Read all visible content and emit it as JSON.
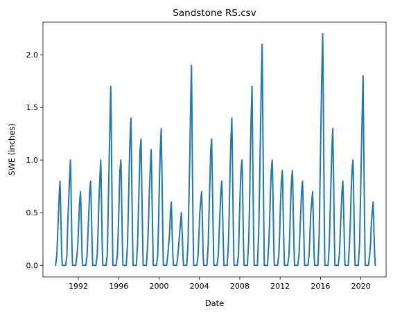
{
  "chart_data": {
    "type": "line",
    "title": "Sandstone RS.csv",
    "xlabel": "Date",
    "ylabel": "SWE (inches)",
    "xlim": [
      "1988-07-01",
      "2022-07-01"
    ],
    "ylim": [
      -0.11,
      2.31
    ],
    "grid": false,
    "x_ticks": [
      "1992",
      "1996",
      "2000",
      "2004",
      "2008",
      "2012",
      "2016",
      "2020"
    ],
    "y_ticks": [
      "0.0",
      "0.5",
      "1.0",
      "1.5",
      "2.0"
    ],
    "line_color": "#1f77b4",
    "series": [
      {
        "seasons": [
          {
            "year": 1990,
            "x": [
              "1989-10-01",
              "1989-11-15",
              "1989-12-15",
              "1990-01-15",
              "1990-02-15",
              "1990-03-10",
              "1990-03-20",
              "1990-04-15",
              "1990-05-10",
              "1990-06-01"
            ],
            "y": [
              0,
              0.1,
              0.3,
              0.5,
              0.7,
              0.8,
              0.7,
              0.4,
              0.1,
              0
            ]
          },
          {
            "year": 1991,
            "x": [
              "1990-10-01",
              "1990-11-15",
              "1990-12-15",
              "1991-01-15",
              "1991-02-15",
              "1991-03-20",
              "1991-04-01",
              "1991-04-20",
              "1991-05-15",
              "1991-06-05"
            ],
            "y": [
              0,
              0.1,
              0.4,
              0.6,
              0.8,
              1.0,
              0.9,
              0.6,
              0.2,
              0
            ]
          },
          {
            "year": 1992,
            "x": [
              "1991-10-01",
              "1991-11-15",
              "1991-12-15",
              "1992-01-15",
              "1992-02-15",
              "1992-03-20",
              "1992-04-01",
              "1992-04-20",
              "1992-05-15",
              "1992-06-05"
            ],
            "y": [
              0,
              0.1,
              0.2,
              0.4,
              0.6,
              0.7,
              0.6,
              0.4,
              0.1,
              0
            ]
          },
          {
            "year": 1993,
            "x": [
              "1992-10-01",
              "1992-11-15",
              "1992-12-15",
              "1993-01-15",
              "1993-02-15",
              "1993-03-20",
              "1993-04-01",
              "1993-04-20",
              "1993-05-15",
              "1993-06-05"
            ],
            "y": [
              0,
              0.1,
              0.3,
              0.5,
              0.7,
              0.8,
              0.7,
              0.5,
              0.2,
              0
            ]
          },
          {
            "year": 1994,
            "x": [
              "1993-10-01",
              "1993-11-15",
              "1993-12-15",
              "1994-01-15",
              "1994-02-15",
              "1994-03-20",
              "1994-04-01",
              "1994-04-20",
              "1994-05-15",
              "1994-06-05"
            ],
            "y": [
              0,
              0.1,
              0.3,
              0.6,
              0.8,
              1.0,
              0.9,
              0.6,
              0.2,
              0
            ]
          },
          {
            "year": 1995,
            "x": [
              "1994-10-01",
              "1994-11-15",
              "1994-12-15",
              "1995-01-15",
              "1995-02-15",
              "1995-03-20",
              "1995-04-01",
              "1995-04-20",
              "1995-05-15",
              "1995-06-05"
            ],
            "y": [
              0,
              0.1,
              0.5,
              0.9,
              1.3,
              1.7,
              1.5,
              1.0,
              0.4,
              0
            ]
          },
          {
            "year": 1996,
            "x": [
              "1995-10-01",
              "1995-11-15",
              "1995-12-15",
              "1996-01-15",
              "1996-02-15",
              "1996-03-20",
              "1996-04-01",
              "1996-04-20",
              "1996-05-15",
              "1996-06-05"
            ],
            "y": [
              0,
              0.1,
              0.3,
              0.6,
              0.9,
              1.0,
              0.9,
              0.6,
              0.2,
              0
            ]
          },
          {
            "year": 1997,
            "x": [
              "1996-10-01",
              "1996-11-15",
              "1996-12-15",
              "1997-01-15",
              "1997-02-15",
              "1997-03-20",
              "1997-04-01",
              "1997-04-20",
              "1997-05-15",
              "1997-06-05"
            ],
            "y": [
              0,
              0.2,
              0.5,
              0.9,
              1.2,
              1.4,
              1.2,
              0.8,
              0.3,
              0
            ]
          },
          {
            "year": 1998,
            "x": [
              "1997-10-01",
              "1997-11-15",
              "1997-12-15",
              "1998-01-15",
              "1998-02-15",
              "1998-03-20",
              "1998-04-01",
              "1998-04-20",
              "1998-05-15",
              "1998-06-05"
            ],
            "y": [
              0,
              0.2,
              0.5,
              0.8,
              1.1,
              1.2,
              1.0,
              0.7,
              0.3,
              0
            ]
          },
          {
            "year": 1999,
            "x": [
              "1998-10-01",
              "1998-11-15",
              "1998-12-15",
              "1999-01-15",
              "1999-02-15",
              "1999-03-20",
              "1999-04-01",
              "1999-04-20",
              "1999-05-15",
              "1999-06-05"
            ],
            "y": [
              0,
              0.2,
              0.4,
              0.7,
              0.9,
              1.1,
              1.0,
              0.7,
              0.3,
              0
            ]
          },
          {
            "year": 2000,
            "x": [
              "1999-10-01",
              "1999-11-15",
              "1999-12-15",
              "2000-01-15",
              "2000-02-15",
              "2000-03-20",
              "2000-04-01",
              "2000-04-20",
              "2000-05-15",
              "2000-06-05"
            ],
            "y": [
              0,
              0.1,
              0.4,
              0.8,
              1.1,
              1.3,
              1.1,
              0.8,
              0.3,
              0
            ]
          },
          {
            "year": 2001,
            "x": [
              "2000-10-01",
              "2000-11-15",
              "2000-12-15",
              "2001-01-15",
              "2001-02-15",
              "2001-03-20",
              "2001-04-01",
              "2001-04-20",
              "2001-05-15",
              "2001-06-05"
            ],
            "y": [
              0,
              0.1,
              0.2,
              0.3,
              0.5,
              0.6,
              0.5,
              0.3,
              0.1,
              0
            ]
          },
          {
            "year": 2002,
            "x": [
              "2001-10-01",
              "2001-11-15",
              "2001-12-15",
              "2002-01-15",
              "2002-02-15",
              "2002-03-20",
              "2002-04-01",
              "2002-04-20",
              "2002-05-15",
              "2002-06-05"
            ],
            "y": [
              0,
              0.1,
              0.2,
              0.3,
              0.4,
              0.5,
              0.4,
              0.3,
              0.1,
              0
            ]
          },
          {
            "year": 2003,
            "x": [
              "2002-10-01",
              "2002-11-15",
              "2002-12-15",
              "2003-01-15",
              "2003-02-15",
              "2003-03-20",
              "2003-04-01",
              "2003-04-20",
              "2003-05-15",
              "2003-06-05"
            ],
            "y": [
              0,
              0.2,
              0.6,
              1.0,
              1.5,
              1.9,
              1.6,
              1.0,
              0.4,
              0
            ]
          },
          {
            "year": 2004,
            "x": [
              "2003-10-01",
              "2003-11-15",
              "2003-12-15",
              "2004-01-15",
              "2004-02-15",
              "2004-03-20",
              "2004-04-01",
              "2004-04-20",
              "2004-05-15",
              "2004-06-05"
            ],
            "y": [
              0,
              0.1,
              0.3,
              0.5,
              0.6,
              0.7,
              0.6,
              0.4,
              0.1,
              0
            ]
          },
          {
            "year": 2005,
            "x": [
              "2004-10-01",
              "2004-11-15",
              "2004-12-15",
              "2005-01-15",
              "2005-02-15",
              "2005-03-20",
              "2005-04-01",
              "2005-04-20",
              "2005-05-15",
              "2005-06-05"
            ],
            "y": [
              0,
              0.2,
              0.5,
              0.8,
              1.1,
              1.2,
              1.0,
              0.7,
              0.3,
              0
            ]
          },
          {
            "year": 2006,
            "x": [
              "2005-10-01",
              "2005-11-15",
              "2005-12-15",
              "2006-01-15",
              "2006-02-15",
              "2006-03-20",
              "2006-04-01",
              "2006-04-20",
              "2006-05-15",
              "2006-06-05"
            ],
            "y": [
              0,
              0.1,
              0.3,
              0.5,
              0.7,
              0.8,
              0.7,
              0.5,
              0.2,
              0
            ]
          },
          {
            "year": 2007,
            "x": [
              "2006-10-01",
              "2006-11-15",
              "2006-12-15",
              "2007-01-15",
              "2007-02-15",
              "2007-03-20",
              "2007-04-01",
              "2007-04-20",
              "2007-05-15",
              "2007-06-05"
            ],
            "y": [
              0,
              0.2,
              0.5,
              0.9,
              1.2,
              1.4,
              1.2,
              0.8,
              0.3,
              0
            ]
          },
          {
            "year": 2008,
            "x": [
              "2007-10-01",
              "2007-11-15",
              "2007-12-15",
              "2008-01-15",
              "2008-02-15",
              "2008-03-20",
              "2008-04-01",
              "2008-04-20",
              "2008-05-15",
              "2008-06-05"
            ],
            "y": [
              0,
              0.1,
              0.4,
              0.7,
              0.9,
              1.0,
              0.9,
              0.6,
              0.2,
              0
            ]
          },
          {
            "year": 2009,
            "x": [
              "2008-10-01",
              "2008-11-15",
              "2008-12-15",
              "2009-01-15",
              "2009-02-15",
              "2009-03-20",
              "2009-04-01",
              "2009-04-20",
              "2009-05-15",
              "2009-06-05"
            ],
            "y": [
              0,
              0.2,
              0.5,
              1.0,
              1.4,
              1.7,
              1.4,
              0.9,
              0.3,
              0
            ]
          },
          {
            "year": 2010,
            "x": [
              "2009-10-01",
              "2009-11-15",
              "2009-12-15",
              "2010-01-15",
              "2010-02-15",
              "2010-03-20",
              "2010-04-01",
              "2010-04-20",
              "2010-05-15",
              "2010-06-05"
            ],
            "y": [
              0,
              0.3,
              0.7,
              1.2,
              1.7,
              2.1,
              1.8,
              1.2,
              0.5,
              0
            ]
          },
          {
            "year": 2011,
            "x": [
              "2010-10-01",
              "2010-11-15",
              "2010-12-15",
              "2011-01-15",
              "2011-02-15",
              "2011-03-20",
              "2011-04-01",
              "2011-04-20",
              "2011-05-15",
              "2011-06-05"
            ],
            "y": [
              0,
              0.2,
              0.4,
              0.7,
              0.9,
              1.0,
              0.9,
              0.6,
              0.2,
              0
            ]
          },
          {
            "year": 2012,
            "x": [
              "2011-10-01",
              "2011-11-15",
              "2011-12-15",
              "2012-01-15",
              "2012-02-15",
              "2012-03-20",
              "2012-04-01",
              "2012-04-20",
              "2012-05-15",
              "2012-06-05"
            ],
            "y": [
              0,
              0.1,
              0.3,
              0.6,
              0.8,
              0.9,
              0.8,
              0.5,
              0.2,
              0
            ]
          },
          {
            "year": 2013,
            "x": [
              "2012-10-01",
              "2012-11-15",
              "2012-12-15",
              "2013-01-15",
              "2013-02-15",
              "2013-03-20",
              "2013-04-01",
              "2013-04-20",
              "2013-05-15",
              "2013-06-05"
            ],
            "y": [
              0,
              0.1,
              0.3,
              0.6,
              0.8,
              0.9,
              0.8,
              0.5,
              0.2,
              0
            ]
          },
          {
            "year": 2014,
            "x": [
              "2013-10-01",
              "2013-11-15",
              "2013-12-15",
              "2014-01-15",
              "2014-02-15",
              "2014-03-20",
              "2014-04-01",
              "2014-04-20",
              "2014-05-15",
              "2014-06-05"
            ],
            "y": [
              0,
              0.1,
              0.3,
              0.5,
              0.7,
              0.8,
              0.7,
              0.5,
              0.2,
              0
            ]
          },
          {
            "year": 2015,
            "x": [
              "2014-10-01",
              "2014-11-15",
              "2014-12-15",
              "2015-01-15",
              "2015-02-15",
              "2015-03-20",
              "2015-04-01",
              "2015-04-20",
              "2015-05-15",
              "2015-06-05"
            ],
            "y": [
              0,
              0.1,
              0.3,
              0.5,
              0.6,
              0.7,
              0.6,
              0.4,
              0.1,
              0
            ]
          },
          {
            "year": 2016,
            "x": [
              "2015-10-01",
              "2015-11-15",
              "2015-12-15",
              "2016-01-15",
              "2016-02-15",
              "2016-03-20",
              "2016-04-01",
              "2016-04-20",
              "2016-05-15",
              "2016-06-05"
            ],
            "y": [
              0,
              0.3,
              0.8,
              1.3,
              1.8,
              2.2,
              1.9,
              1.3,
              0.5,
              0
            ]
          },
          {
            "year": 2017,
            "x": [
              "2016-10-01",
              "2016-11-15",
              "2016-12-15",
              "2017-01-15",
              "2017-02-15",
              "2017-03-20",
              "2017-04-01",
              "2017-04-20",
              "2017-05-15",
              "2017-06-05"
            ],
            "y": [
              0,
              0.2,
              0.5,
              0.8,
              1.1,
              1.3,
              1.1,
              0.8,
              0.3,
              0
            ]
          },
          {
            "year": 2018,
            "x": [
              "2017-10-01",
              "2017-11-15",
              "2017-12-15",
              "2018-01-15",
              "2018-02-15",
              "2018-03-20",
              "2018-04-01",
              "2018-04-20",
              "2018-05-15",
              "2018-06-05"
            ],
            "y": [
              0,
              0.1,
              0.3,
              0.5,
              0.7,
              0.8,
              0.7,
              0.5,
              0.2,
              0
            ]
          },
          {
            "year": 2019,
            "x": [
              "2018-10-01",
              "2018-11-15",
              "2018-12-15",
              "2019-01-15",
              "2019-02-15",
              "2019-03-20",
              "2019-04-01",
              "2019-04-20",
              "2019-05-15",
              "2019-06-05"
            ],
            "y": [
              0,
              0.2,
              0.4,
              0.7,
              0.9,
              1.0,
              0.9,
              0.6,
              0.2,
              0
            ]
          },
          {
            "year": 2020,
            "x": [
              "2019-10-01",
              "2019-11-15",
              "2019-12-15",
              "2020-01-15",
              "2020-02-15",
              "2020-03-20",
              "2020-04-01",
              "2020-04-20",
              "2020-05-15",
              "2020-06-05"
            ],
            "y": [
              0,
              0.2,
              0.6,
              1.0,
              1.4,
              1.8,
              1.5,
              1.0,
              0.4,
              0
            ]
          },
          {
            "year": 2021,
            "x": [
              "2020-10-01",
              "2020-11-15",
              "2020-12-15",
              "2021-01-15",
              "2021-02-15",
              "2021-03-20",
              "2021-04-01",
              "2021-04-20",
              "2021-05-15",
              "2021-06-05"
            ],
            "y": [
              0,
              0.1,
              0.2,
              0.4,
              0.5,
              0.6,
              0.5,
              0.3,
              0.1,
              0
            ]
          }
        ]
      }
    ]
  }
}
